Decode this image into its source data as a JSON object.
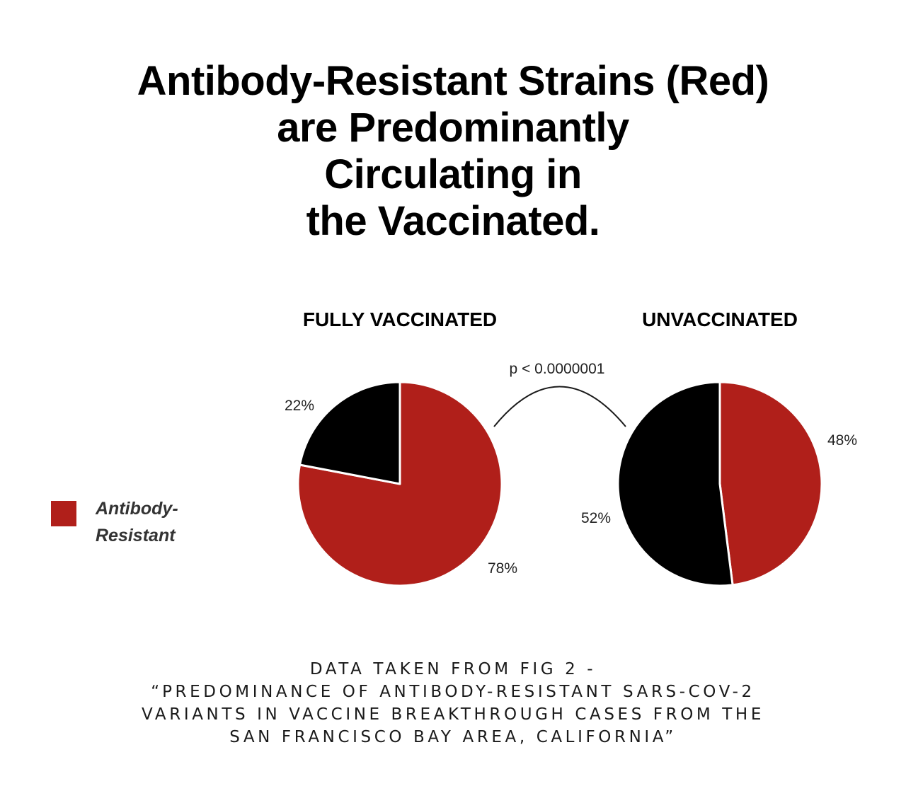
{
  "headline": {
    "line1": "Antibody-Resistant Strains (Red)",
    "line2": "are Predominantly",
    "line3": "Circulating in",
    "line4": "the Vaccinated."
  },
  "source_note": {
    "line1": "DATA TAKEN FROM FIG 2 -",
    "line2": "“PREDOMINANCE OF ANTIBODY-RESISTANT SARS-COV-2",
    "line3": "VARIANTS IN VACCINE BREAKTHROUGH CASES FROM THE",
    "line4": "SAN FRANCISCO BAY AREA, CALIFORNIA”"
  },
  "colors": {
    "antibody_resistant": "#b01f1a",
    "other": "#000000"
  },
  "chart_data": [
    {
      "type": "pie",
      "title": "FULLY VACCINATED",
      "categories": [
        "Antibody-Resistant",
        ""
      ],
      "values": [
        78,
        22
      ],
      "labels": [
        "78%",
        "22%"
      ]
    },
    {
      "type": "pie",
      "title": "UNVACCINATED",
      "categories": [
        "Antibody-Resistant",
        ""
      ],
      "values": [
        48,
        52
      ],
      "labels": [
        "48%",
        "52%"
      ]
    }
  ],
  "comparison": {
    "p_value": "p < 0.0000001"
  },
  "legend": {
    "line1": "Antibody-",
    "line2": "Resistant"
  }
}
